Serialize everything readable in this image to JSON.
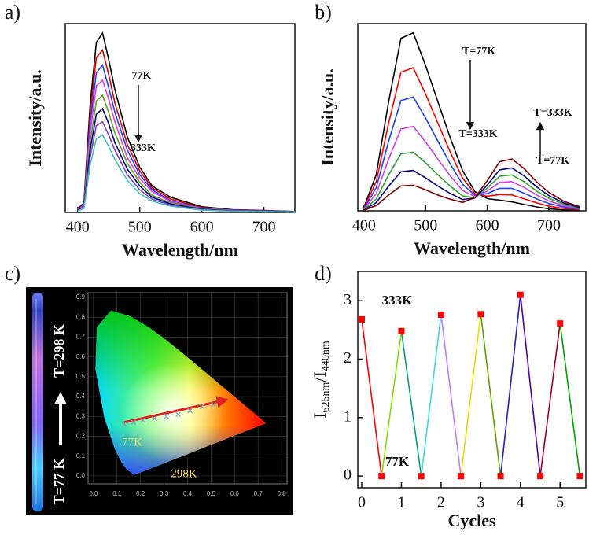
{
  "chart_data": [
    {
      "type": "spectra",
      "label": "a)",
      "xlabel": "Wavelength/nm",
      "ylabel": "Intensity/a.u.",
      "xlim": [
        380,
        750
      ],
      "ylim": [
        0,
        100
      ],
      "xticks": [
        400,
        500,
        600,
        700
      ],
      "x": [
        400,
        410,
        420,
        430,
        440,
        450,
        460,
        480,
        500,
        520,
        550,
        600,
        650,
        700,
        750
      ],
      "series": [
        {
          "color": "#000000",
          "values": [
            2,
            5,
            57,
            90,
            95,
            81,
            65,
            40,
            24,
            14,
            8,
            3,
            1.4,
            1,
            0.5
          ]
        },
        {
          "color": "#e00000",
          "values": [
            2,
            4,
            52,
            82,
            86,
            73,
            58,
            36,
            22,
            13,
            7,
            2.6,
            1.3,
            0.9,
            0.4
          ]
        },
        {
          "color": "#2040ff",
          "values": [
            1.6,
            4,
            47,
            74,
            78,
            66,
            53,
            33,
            20,
            12,
            6,
            2.3,
            1.2,
            0.8,
            0.4
          ]
        },
        {
          "color": "#e040e0",
          "values": [
            1.4,
            3.5,
            42,
            67,
            70,
            60,
            48,
            29,
            18,
            11,
            5.6,
            2.1,
            1.1,
            0.7,
            0.4
          ]
        },
        {
          "color": "#60a020",
          "values": [
            1.2,
            3,
            37,
            59,
            62,
            53,
            42,
            26,
            16,
            9,
            5,
            1.9,
            0.9,
            0.6,
            0.3
          ]
        },
        {
          "color": "#000080",
          "values": [
            1.1,
            2.8,
            33,
            52,
            55,
            47,
            37,
            23,
            14,
            8,
            4.4,
            1.7,
            0.8,
            0.6,
            0.3
          ]
        },
        {
          "color": "#8040c0",
          "values": [
            1,
            2.4,
            29,
            46,
            48,
            41,
            33,
            20,
            12,
            7,
            3.8,
            1.4,
            0.7,
            0.5,
            0.2
          ]
        },
        {
          "color": "#40c0c0",
          "values": [
            0.8,
            2,
            25,
            39,
            41,
            35,
            28,
            17,
            10,
            6,
            3.3,
            1.2,
            0.6,
            0.4,
            0.2
          ]
        }
      ],
      "annotations": [
        "77K",
        "333K"
      ]
    },
    {
      "type": "spectra",
      "label": "b)",
      "xlabel": "Wavelength/nm",
      "ylabel": "Intensity/a.u.",
      "xlim": [
        390,
        760
      ],
      "ylim": [
        0,
        100
      ],
      "xticks": [
        400,
        500,
        600,
        700
      ],
      "x": [
        400,
        420,
        440,
        460,
        480,
        500,
        520,
        540,
        560,
        580,
        600,
        620,
        640,
        660,
        680,
        700,
        725,
        750
      ],
      "series": [
        {
          "color": "#000000",
          "values": [
            1.9,
            19.4,
            58.2,
            92.2,
            95.1,
            77.6,
            58.2,
            38.9,
            21.5,
            10.3,
            6.5,
            5.7,
            4.8,
            3.4,
            2.1,
            1.1,
            0.5,
            0.2
          ]
        },
        {
          "color": "#ff0000",
          "values": [
            1.6,
            15.6,
            46.8,
            74.1,
            76.4,
            62.4,
            46.8,
            31.3,
            17.5,
            9.2,
            7.8,
            8.7,
            8.5,
            6.4,
            4.3,
            2.5,
            1.3,
            0.6
          ]
        },
        {
          "color": "#2040ff",
          "values": [
            1.2,
            12.4,
            37.2,
            58.9,
            60.8,
            49.6,
            37.2,
            25.0,
            14.2,
            8.4,
            9.2,
            12.0,
            12.0,
            9.4,
            6.4,
            3.9,
            2.0,
            0.9
          ]
        },
        {
          "color": "#d040e0",
          "values": [
            0.9,
            9.2,
            27.6,
            43.7,
            45.1,
            36.8,
            27.6,
            18.7,
            10.9,
            7.6,
            10.6,
            15.2,
            15.6,
            12.5,
            8.5,
            5.3,
            2.7,
            1.2
          ]
        },
        {
          "color": "#30a030",
          "values": [
            0.6,
            6.4,
            19.2,
            30.4,
            31.4,
            25.6,
            19.2,
            13.2,
            8.0,
            7.0,
            12.1,
            18.5,
            19.2,
            15.5,
            10.6,
            6.7,
            3.4,
            1.5
          ]
        },
        {
          "color": "#000080",
          "values": [
            0.4,
            4.4,
            13.2,
            20.9,
            21.6,
            17.6,
            13.2,
            9.3,
            6.0,
            6.8,
            13.8,
            21.9,
            22.9,
            18.6,
            12.8,
            8.1,
            4.1,
            1.8
          ]
        },
        {
          "color": "#800000",
          "values": [
            0.3,
            2.8,
            8.4,
            13.3,
            13.7,
            11.2,
            8.4,
            6.2,
            4.5,
            7.0,
            16.1,
            26.2,
            27.7,
            22.5,
            15.5,
            9.8,
            5.0,
            2.2
          ]
        }
      ],
      "annotations": [
        "T=77K",
        "T=333K",
        "T=333K",
        "T=77K"
      ]
    },
    {
      "type": "cie",
      "label": "c)",
      "xlim": [
        -0.023,
        0.823
      ],
      "ylim": [
        -0.04,
        0.924
      ],
      "xticks": [
        {
          "value": 0,
          "label": "0.0"
        },
        0.1,
        0.2,
        0.3,
        0.4,
        0.5,
        0.6,
        0.7,
        0.8
      ],
      "yticks": [
        {
          "value": 0,
          "label": "0.0"
        },
        0.1,
        0.2,
        0.3,
        0.4,
        0.5,
        0.6,
        0.7,
        0.8,
        0.9
      ],
      "x": [
        0.13,
        0.17,
        0.21,
        0.26,
        0.31,
        0.36,
        0.41,
        0.46,
        0.51
      ],
      "values": [
        0.26,
        0.27,
        0.28,
        0.29,
        0.3,
        0.31,
        0.33,
        0.35,
        0.36
      ],
      "color": "#8aa0b8",
      "annotations": [
        "77K",
        "298K"
      ],
      "photo_labels": [
        "T=77 K",
        "T=298 K"
      ]
    },
    {
      "type": "cycle",
      "label": "d)",
      "xlabel": "Cycles",
      "ylabel": [
        "I",
        "625nm",
        "/I",
        "440nm"
      ],
      "xlim": [
        -0.1,
        5.65
      ],
      "ylim": [
        -0.2,
        3.5
      ],
      "xticks": [
        0,
        1,
        2,
        3,
        4,
        5
      ],
      "yticks": [
        0,
        1,
        2,
        3
      ],
      "x": [
        0,
        0.5,
        1,
        1.5,
        2,
        2.5,
        3,
        3.5,
        4,
        4.5,
        5,
        5.5
      ],
      "values": [
        2.68,
        0,
        2.48,
        0,
        2.76,
        0,
        2.77,
        0,
        3.1,
        0,
        2.61,
        0
      ],
      "marker_color": "#ff0000",
      "segment_colors": [
        "#ff0000",
        "#80e000",
        "#00a080",
        "#40d8e0",
        "#c080ff",
        "#e0e000",
        "#60a000",
        "#2020c0",
        "#5000a0",
        "#a00020",
        "#00a000"
      ],
      "annotations": [
        "333K",
        "77K"
      ]
    }
  ]
}
